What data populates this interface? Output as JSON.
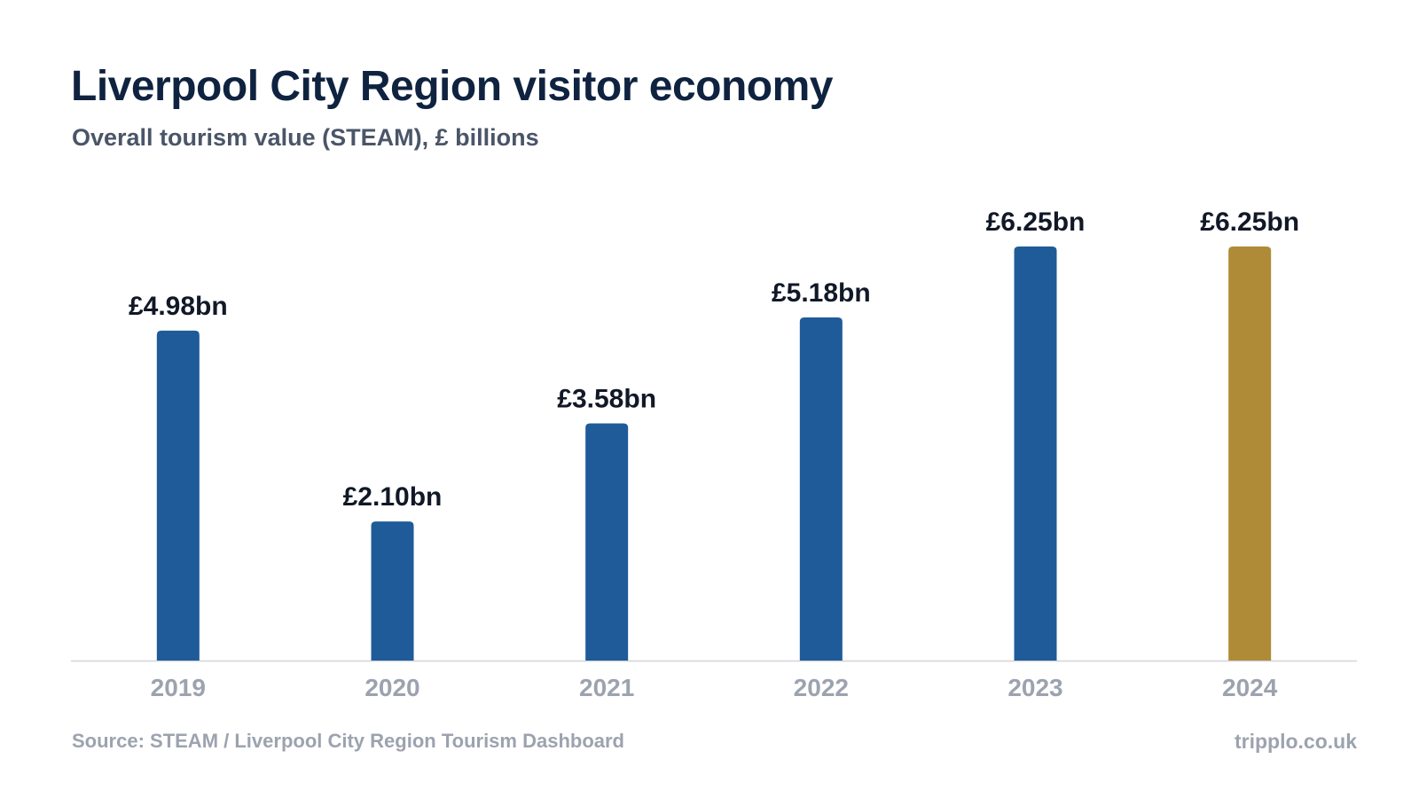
{
  "title": "Liverpool City Region visitor economy",
  "subtitle": "Overall tourism value (STEAM), £ billions",
  "footer": {
    "source": "Source: STEAM / Liverpool City Region Tourism Dashboard",
    "brand": "tripplo.co.uk"
  },
  "colors": {
    "bar": "#1f5b99",
    "highlight": "#b08b37",
    "title": "#0f2340",
    "subtitle": "#4a5568",
    "axis_label": "#9ca3af",
    "value_label": "#111827",
    "axis_line": "#d1d5db"
  },
  "chart_data": {
    "type": "bar",
    "title": "Liverpool City Region visitor economy",
    "subtitle": "Overall tourism value (STEAM), £ billions",
    "categories": [
      "2019",
      "2020",
      "2021",
      "2022",
      "2023",
      "2024"
    ],
    "values": [
      4.98,
      2.1,
      3.58,
      5.18,
      6.25,
      6.25
    ],
    "data_labels": [
      "£4.98bn",
      "£2.10bn",
      "£3.58bn",
      "£5.18bn",
      "£6.25bn",
      "£6.25bn"
    ],
    "highlight_category": "2024",
    "ylim": [
      0,
      6.25
    ],
    "grid": false,
    "legend": "none"
  }
}
